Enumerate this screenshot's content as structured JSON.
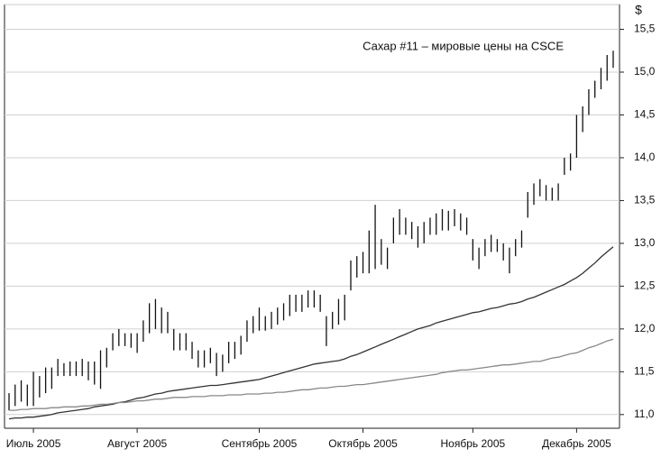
{
  "chart_data": {
    "type": "hilo",
    "title": "Сахар #11 – мировые цены на CSCE",
    "y_label": "$",
    "categories": [
      null,
      null,
      null,
      null,
      "Июль 2005",
      null,
      null,
      null,
      null,
      null,
      null,
      null,
      null,
      null,
      null,
      null,
      null,
      null,
      null,
      null,
      null,
      "Август 2005",
      null,
      null,
      null,
      null,
      null,
      null,
      null,
      null,
      null,
      null,
      null,
      null,
      null,
      null,
      null,
      null,
      null,
      null,
      null,
      "Сентябрь 2005",
      null,
      null,
      null,
      null,
      null,
      null,
      null,
      null,
      null,
      null,
      null,
      null,
      null,
      null,
      null,
      null,
      "Октябрь 2005",
      null,
      null,
      null,
      null,
      null,
      null,
      null,
      null,
      null,
      null,
      null,
      null,
      null,
      null,
      null,
      null,
      null,
      "Ноябрь 2005",
      null,
      null,
      null,
      null,
      null,
      null,
      null,
      null,
      null,
      null,
      null,
      null,
      null,
      null,
      null,
      null,
      "Декабрь 2005",
      null,
      null,
      null,
      null,
      null,
      null
    ],
    "high": [
      11.25,
      11.35,
      11.4,
      11.35,
      11.5,
      11.45,
      11.55,
      11.55,
      11.65,
      11.6,
      11.62,
      11.62,
      11.65,
      11.62,
      11.62,
      11.75,
      11.78,
      11.95,
      12.0,
      11.95,
      11.95,
      11.95,
      12.1,
      12.3,
      12.35,
      12.25,
      12.2,
      12.0,
      11.95,
      11.95,
      11.85,
      11.75,
      11.75,
      11.78,
      11.72,
      11.7,
      11.85,
      11.85,
      11.92,
      12.1,
      12.15,
      12.25,
      12.15,
      12.2,
      12.25,
      12.3,
      12.4,
      12.4,
      12.4,
      12.45,
      12.45,
      12.4,
      12.15,
      12.2,
      12.35,
      12.4,
      12.8,
      12.85,
      12.9,
      13.15,
      13.45,
      13.05,
      12.95,
      13.3,
      13.4,
      13.3,
      13.25,
      13.2,
      13.25,
      13.3,
      13.35,
      13.4,
      13.38,
      13.4,
      13.35,
      13.3,
      13.05,
      12.95,
      13.05,
      13.1,
      13.05,
      13.0,
      12.95,
      13.05,
      13.15,
      13.6,
      13.7,
      13.75,
      13.68,
      13.65,
      13.7,
      14.0,
      14.05,
      14.5,
      14.6,
      14.8,
      14.9,
      15.05,
      15.2,
      15.25
    ],
    "low": [
      11.05,
      11.1,
      11.15,
      11.1,
      11.1,
      11.2,
      11.25,
      11.3,
      11.45,
      11.45,
      11.45,
      11.45,
      11.45,
      11.4,
      11.35,
      11.3,
      11.55,
      11.75,
      11.8,
      11.8,
      11.78,
      11.72,
      11.85,
      11.95,
      12.0,
      11.95,
      11.95,
      11.75,
      11.75,
      11.75,
      11.65,
      11.55,
      11.55,
      11.6,
      11.45,
      11.5,
      11.6,
      11.65,
      11.7,
      11.85,
      11.95,
      11.98,
      11.98,
      12.0,
      12.05,
      12.1,
      12.15,
      12.2,
      12.2,
      12.25,
      12.25,
      12.2,
      11.8,
      12.0,
      12.05,
      12.1,
      12.45,
      12.6,
      12.65,
      12.65,
      12.7,
      12.75,
      12.7,
      13.0,
      13.1,
      13.1,
      13.05,
      12.95,
      13.0,
      13.1,
      13.1,
      13.15,
      13.15,
      13.2,
      13.15,
      13.1,
      12.8,
      12.7,
      12.85,
      12.9,
      12.9,
      12.8,
      12.65,
      12.85,
      12.95,
      13.3,
      13.45,
      13.55,
      13.5,
      13.5,
      13.5,
      13.8,
      13.85,
      14.0,
      14.3,
      14.5,
      14.7,
      14.8,
      14.9,
      15.05
    ],
    "lines": [
      {
        "color": "#333333",
        "values": [
          10.95,
          10.96,
          10.96,
          10.97,
          10.97,
          10.98,
          10.99,
          11.0,
          11.02,
          11.03,
          11.04,
          11.05,
          11.06,
          11.07,
          11.09,
          11.1,
          11.11,
          11.12,
          11.14,
          11.15,
          11.17,
          11.19,
          11.2,
          11.22,
          11.24,
          11.25,
          11.27,
          11.28,
          11.29,
          11.3,
          11.31,
          11.32,
          11.33,
          11.34,
          11.34,
          11.35,
          11.36,
          11.37,
          11.38,
          11.39,
          11.4,
          11.41,
          11.43,
          11.45,
          11.47,
          11.49,
          11.51,
          11.53,
          11.55,
          11.57,
          11.59,
          11.6,
          11.61,
          11.62,
          11.63,
          11.65,
          11.68,
          11.7,
          11.73,
          11.76,
          11.79,
          11.82,
          11.85,
          11.88,
          11.91,
          11.94,
          11.97,
          12.0,
          12.02,
          12.04,
          12.07,
          12.09,
          12.11,
          12.13,
          12.15,
          12.17,
          12.19,
          12.2,
          12.22,
          12.24,
          12.25,
          12.27,
          12.29,
          12.3,
          12.32,
          12.35,
          12.37,
          12.4,
          12.43,
          12.46,
          12.49,
          12.52,
          12.56,
          12.6,
          12.65,
          12.71,
          12.77,
          12.84,
          12.9,
          12.96
        ]
      },
      {
        "color": "#888888",
        "values": [
          11.05,
          11.05,
          11.06,
          11.06,
          11.07,
          11.07,
          11.07,
          11.08,
          11.08,
          11.09,
          11.09,
          11.09,
          11.1,
          11.1,
          11.11,
          11.12,
          11.12,
          11.13,
          11.14,
          11.14,
          11.15,
          11.16,
          11.16,
          11.17,
          11.18,
          11.18,
          11.19,
          11.2,
          11.2,
          11.2,
          11.21,
          11.21,
          11.21,
          11.22,
          11.22,
          11.22,
          11.23,
          11.23,
          11.23,
          11.24,
          11.24,
          11.24,
          11.25,
          11.25,
          11.26,
          11.26,
          11.27,
          11.28,
          11.29,
          11.29,
          11.3,
          11.31,
          11.31,
          11.32,
          11.33,
          11.33,
          11.34,
          11.35,
          11.35,
          11.36,
          11.37,
          11.38,
          11.39,
          11.4,
          11.41,
          11.42,
          11.43,
          11.44,
          11.45,
          11.46,
          11.47,
          11.49,
          11.5,
          11.51,
          11.52,
          11.52,
          11.53,
          11.54,
          11.55,
          11.56,
          11.57,
          11.58,
          11.58,
          11.59,
          11.6,
          11.61,
          11.62,
          11.62,
          11.64,
          11.66,
          11.67,
          11.69,
          11.71,
          11.72,
          11.75,
          11.78,
          11.8,
          11.83,
          11.86,
          11.88
        ]
      }
    ],
    "bar_color": "#111111",
    "ylim": [
      10.84,
      15.79
    ],
    "yticks": [
      {
        "value": 11.0,
        "label": "11,0"
      },
      {
        "value": 11.5,
        "label": "11,5"
      },
      {
        "value": 12.0,
        "label": "12,0"
      },
      {
        "value": 12.5,
        "label": "12,5"
      },
      {
        "value": 13.0,
        "label": "13,0"
      },
      {
        "value": 13.5,
        "label": "13,5"
      },
      {
        "value": 14.0,
        "label": "14,0"
      },
      {
        "value": 14.5,
        "label": "14,5"
      },
      {
        "value": 15.0,
        "label": "15,0"
      },
      {
        "value": 15.5,
        "label": "15,5"
      }
    ],
    "grid": true
  }
}
